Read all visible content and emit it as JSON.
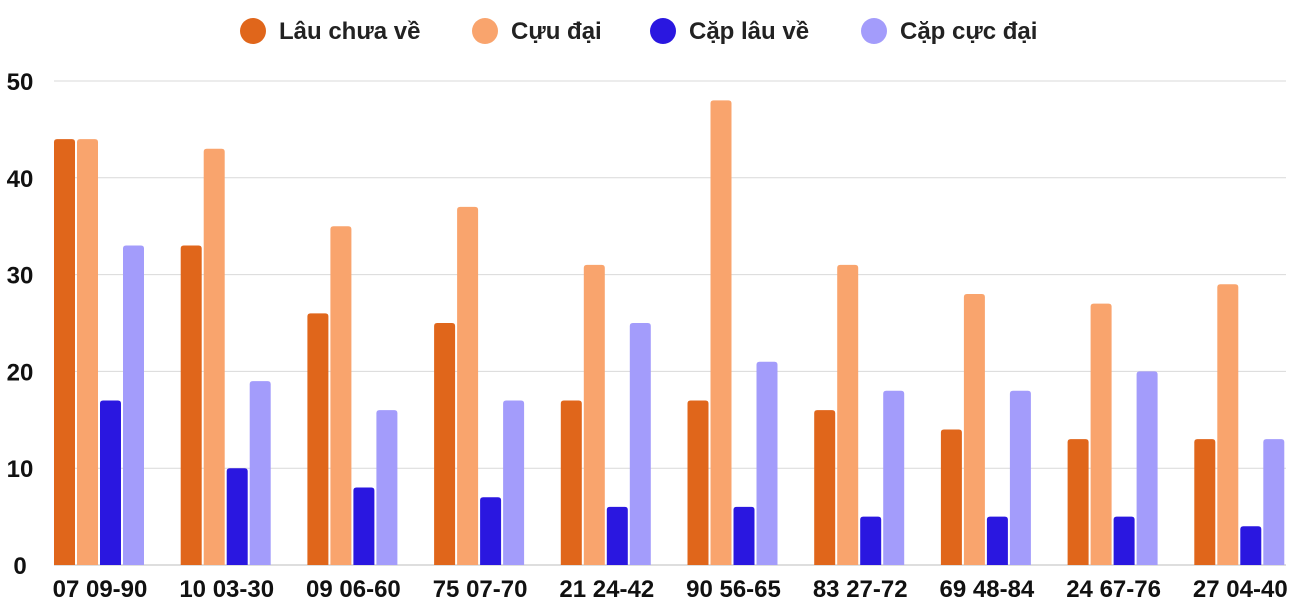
{
  "chart_data": {
    "type": "bar",
    "categories": [
      "07",
      "10",
      "09",
      "75",
      "21",
      "90",
      "83",
      "69",
      "24",
      "27"
    ],
    "pairs": [
      "09-90",
      "03-30",
      "06-60",
      "07-70",
      "24-42",
      "56-65",
      "27-72",
      "48-84",
      "67-76",
      "04-40"
    ],
    "series": [
      {
        "name": "Lâu chưa về",
        "color": "#e0661b",
        "values": [
          44,
          33,
          26,
          25,
          17,
          17,
          16,
          14,
          13,
          13
        ]
      },
      {
        "name": "Cựu đại",
        "color": "#f9a46d",
        "values": [
          44,
          43,
          35,
          37,
          31,
          48,
          31,
          28,
          27,
          29
        ]
      },
      {
        "name": "Cặp lâu về",
        "color": "#2a17e0",
        "values": [
          17,
          10,
          8,
          7,
          6,
          6,
          5,
          5,
          5,
          4
        ]
      },
      {
        "name": "Cặp cực đại",
        "color": "#a39cfb",
        "values": [
          33,
          19,
          16,
          17,
          25,
          21,
          18,
          18,
          20,
          13
        ]
      }
    ],
    "yticks": [
      0,
      10,
      20,
      30,
      40,
      50
    ],
    "ylim": [
      0,
      50
    ],
    "grid": true,
    "legend_position": "top-center"
  }
}
